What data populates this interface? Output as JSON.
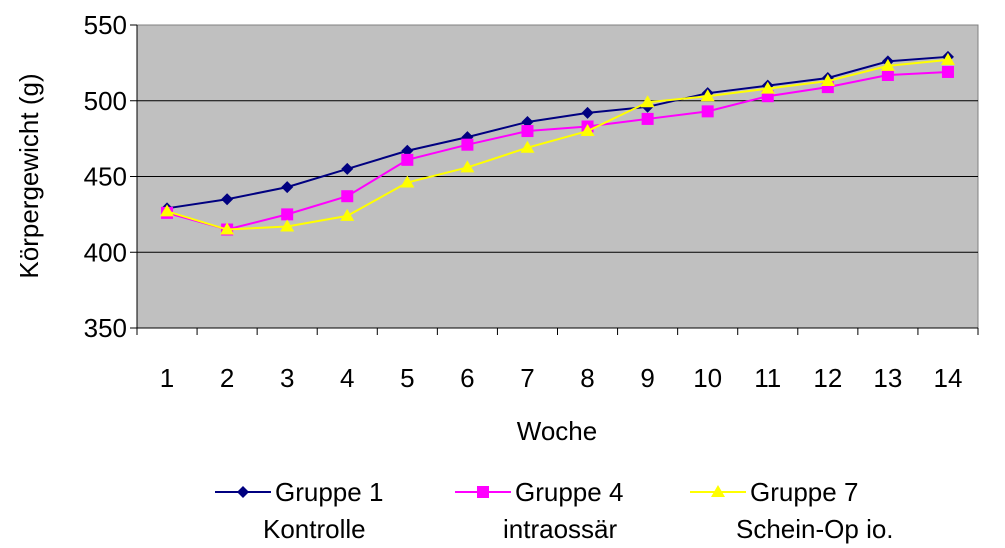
{
  "chart_data": {
    "type": "line",
    "title": "",
    "xlabel": "Woche",
    "ylabel": "Körpergewicht (g)",
    "ylim": [
      350,
      550
    ],
    "yticks": [
      350,
      400,
      450,
      500,
      550
    ],
    "categories": [
      "1",
      "2",
      "3",
      "4",
      "5",
      "6",
      "7",
      "8",
      "9",
      "10",
      "11",
      "12",
      "13",
      "14"
    ],
    "grid": true,
    "legend_position": "bottom",
    "plot_background": "#c0c0c0",
    "series": [
      {
        "name": "Gruppe 1\nKontrolle",
        "name_lines": [
          "Gruppe 1",
          "Kontrolle"
        ],
        "color": "#000080",
        "marker": "diamond",
        "values": [
          429,
          435,
          443,
          455,
          467,
          476,
          486,
          492,
          496,
          505,
          510,
          515,
          526,
          529
        ]
      },
      {
        "name": "Gruppe 4\nintraossär",
        "name_lines": [
          "Gruppe 4",
          "intraossär"
        ],
        "color": "#ff00ff",
        "marker": "square",
        "values": [
          426,
          415,
          425,
          437,
          461,
          471,
          480,
          483,
          488,
          493,
          503,
          509,
          517,
          519
        ]
      },
      {
        "name": "Gruppe 7\nSchein-Op io.",
        "name_lines": [
          "Gruppe 7",
          "Schein-Op io."
        ],
        "color": "#ffff00",
        "marker": "triangle",
        "values": [
          427,
          415,
          417,
          424,
          446,
          456,
          469,
          480,
          499,
          503,
          508,
          513,
          523,
          527
        ]
      }
    ]
  }
}
